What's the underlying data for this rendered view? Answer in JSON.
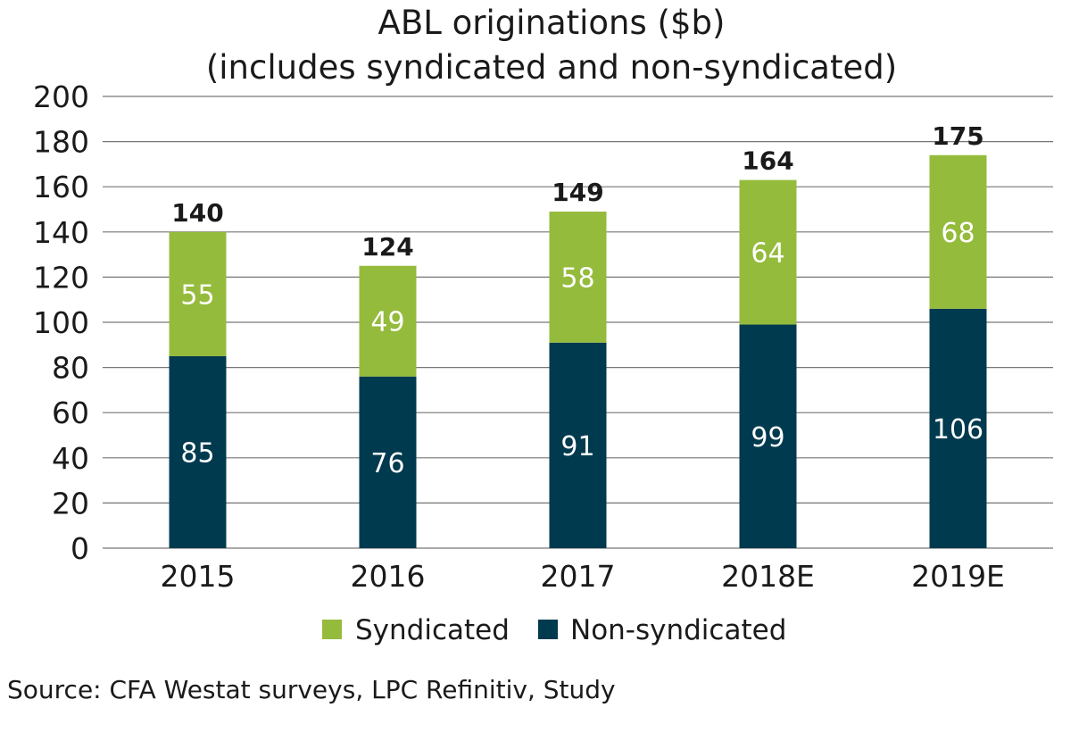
{
  "chart_data": {
    "type": "bar",
    "stacked": true,
    "title": "ABL originations ($b)",
    "subtitle": "(includes syndicated and non-syndicated)",
    "categories": [
      "2015",
      "2016",
      "2017",
      "2018E",
      "2019E"
    ],
    "series": [
      {
        "name": "Non-syndicated",
        "values": [
          85,
          76,
          91,
          99,
          106
        ],
        "color": "#003a4f"
      },
      {
        "name": "Syndicated",
        "values": [
          55,
          49,
          58,
          64,
          68
        ],
        "color": "#95bb3c"
      }
    ],
    "totals": [
      140,
      124,
      149,
      164,
      175
    ],
    "ylim": [
      0,
      200
    ],
    "yticks": [
      0,
      20,
      40,
      60,
      80,
      100,
      120,
      140,
      160,
      180,
      200
    ],
    "grid": true,
    "legend": [
      "Syndicated",
      "Non-syndicated"
    ],
    "legend_position": "bottom",
    "source": "Source: CFA Westat surveys, LPC Refinitiv, Study"
  }
}
